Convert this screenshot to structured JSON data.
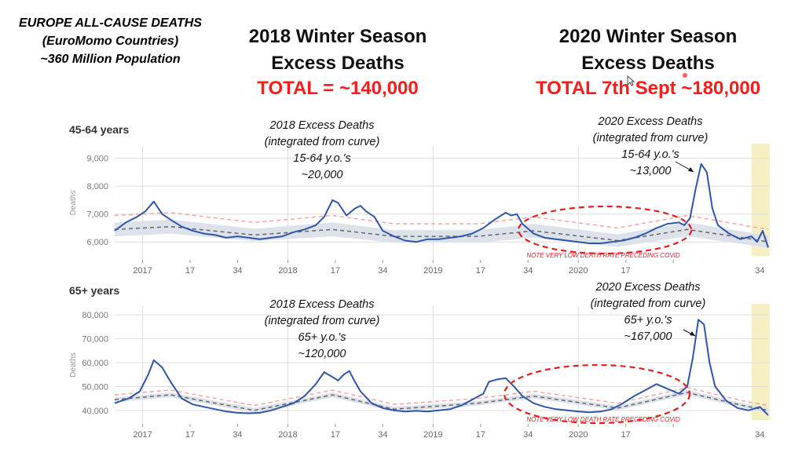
{
  "header": {
    "region_lines": [
      "EUROPE ALL-CAUSE DEATHS",
      "(EuroMomo Countries)",
      "~360 Million Population"
    ],
    "season_2018": {
      "title_lines": [
        "2018 Winter Season",
        "Excess Deaths"
      ],
      "total": "TOTAL = ~140,000"
    },
    "season_2020": {
      "title_lines": [
        "2020 Winter Season",
        "Excess Deaths"
      ],
      "total": "TOTAL 7th Sept ~180,000"
    }
  },
  "colors": {
    "observed": "#2f55a8",
    "baseline": "#666666",
    "upper_threshold": "#f4a3a3",
    "band": "#dde2ea",
    "highlight": "#f7efc4",
    "annotation_red": "#e02020",
    "grid": "#dddddd"
  },
  "panels": [
    {
      "age_label": "45-64 years",
      "y_axis_label": "Deaths",
      "y_ticks": [
        "6,000",
        "7,000",
        "8,000",
        "9,000"
      ],
      "x_ticks": [
        "2017",
        "17",
        "34",
        "2018",
        "17",
        "34",
        "2019",
        "17",
        "34",
        "2020",
        "17",
        "34"
      ],
      "annotation_2018": [
        "2018 Excess Deaths",
        "(integrated from curve)",
        "15-64 y.o.'s",
        "~20,000"
      ],
      "annotation_2020": [
        "2020 Excess Deaths",
        "(integrated from curve)",
        "15-64 y.o.'s",
        "~13,000"
      ],
      "note": "NOTE VERY LOW DEATH RATE PRECEDING COVID"
    },
    {
      "age_label": "65+ years",
      "y_axis_label": "Deaths",
      "y_ticks": [
        "40,000",
        "50,000",
        "60,000",
        "70,000",
        "80,000"
      ],
      "x_ticks": [
        "2017",
        "17",
        "34",
        "2018",
        "17",
        "34",
        "2019",
        "17",
        "34",
        "2020",
        "17",
        "34"
      ],
      "annotation_2018": [
        "2018 Excess Deaths",
        "(integrated from curve)",
        "65+ y.o.'s",
        "~120,000"
      ],
      "annotation_2020": [
        "2020 Excess Deaths",
        "(integrated from curve)",
        "65+ y.o.'s",
        "~167,000"
      ],
      "note": "NOTE VERY LOW DEATH RATE PRECEDING COVID"
    }
  ],
  "chart_data": [
    {
      "type": "line",
      "title": "45-64 years",
      "ylabel": "Deaths",
      "x_unit": "weeks since start of chart (week 1 = start of 2016/17 season)",
      "x_tick_labels": [
        "2017",
        "17",
        "34",
        "2018",
        "17",
        "34",
        "2019",
        "17",
        "34",
        "2020",
        "17",
        "34"
      ],
      "ylim": [
        5500,
        9300
      ],
      "series": [
        {
          "name": "Observed",
          "points": [
            [
              0,
              6400
            ],
            [
              4,
              6700
            ],
            [
              8,
              6900
            ],
            [
              11,
              7100
            ],
            [
              14,
              7450
            ],
            [
              17,
              7000
            ],
            [
              20,
              6800
            ],
            [
              24,
              6550
            ],
            [
              28,
              6400
            ],
            [
              32,
              6300
            ],
            [
              36,
              6250
            ],
            [
              40,
              6150
            ],
            [
              44,
              6200
            ],
            [
              48,
              6150
            ],
            [
              52,
              6100
            ],
            [
              56,
              6150
            ],
            [
              60,
              6200
            ],
            [
              64,
              6350
            ],
            [
              68,
              6450
            ],
            [
              72,
              6600
            ],
            [
              75,
              6900
            ],
            [
              78,
              7500
            ],
            [
              80,
              7400
            ],
            [
              83,
              6950
            ],
            [
              86,
              7200
            ],
            [
              88,
              7300
            ],
            [
              90,
              7100
            ],
            [
              93,
              6900
            ],
            [
              96,
              6400
            ],
            [
              100,
              6200
            ],
            [
              104,
              6050
            ],
            [
              108,
              6000
            ],
            [
              112,
              6100
            ],
            [
              116,
              6100
            ],
            [
              120,
              6150
            ],
            [
              124,
              6200
            ],
            [
              128,
              6300
            ],
            [
              132,
              6500
            ],
            [
              136,
              6800
            ],
            [
              140,
              7050
            ],
            [
              142,
              6950
            ],
            [
              144,
              7000
            ],
            [
              146,
              6650
            ],
            [
              150,
              6300
            ],
            [
              154,
              6150
            ],
            [
              158,
              6100
            ],
            [
              162,
              6050
            ],
            [
              166,
              6000
            ],
            [
              170,
              5950
            ],
            [
              174,
              5950
            ],
            [
              178,
              6000
            ],
            [
              182,
              6050
            ],
            [
              186,
              6150
            ],
            [
              190,
              6300
            ],
            [
              194,
              6500
            ],
            [
              198,
              6650
            ],
            [
              202,
              6700
            ],
            [
              204,
              6600
            ],
            [
              206,
              6850
            ],
            [
              208,
              7900
            ],
            [
              210,
              8800
            ],
            [
              212,
              8500
            ],
            [
              214,
              7200
            ],
            [
              216,
              6600
            ],
            [
              220,
              6300
            ],
            [
              224,
              6100
            ],
            [
              228,
              6200
            ],
            [
              230,
              6000
            ],
            [
              232,
              6400
            ],
            [
              234,
              5800
            ]
          ]
        },
        {
          "name": "Baseline",
          "points": [
            [
              0,
              6450
            ],
            [
              20,
              6550
            ],
            [
              50,
              6250
            ],
            [
              78,
              6450
            ],
            [
              100,
              6200
            ],
            [
              130,
              6200
            ],
            [
              150,
              6400
            ],
            [
              180,
              6050
            ],
            [
              205,
              6450
            ],
            [
              225,
              6150
            ],
            [
              234,
              6000
            ]
          ]
        },
        {
          "name": "Upper threshold",
          "points": [
            [
              0,
              6950
            ],
            [
              20,
              7050
            ],
            [
              50,
              6700
            ],
            [
              78,
              6950
            ],
            [
              100,
              6650
            ],
            [
              130,
              6650
            ],
            [
              150,
              6900
            ],
            [
              180,
              6500
            ],
            [
              205,
              6950
            ],
            [
              225,
              6600
            ],
            [
              234,
              6450
            ]
          ]
        }
      ]
    },
    {
      "type": "line",
      "title": "65+ years",
      "ylabel": "Deaths",
      "x_unit": "weeks since start of chart (week 1 = start of 2016/17 season)",
      "x_tick_labels": [
        "2017",
        "17",
        "34",
        "2018",
        "17",
        "34",
        "2019",
        "17",
        "34",
        "2020",
        "17",
        "34"
      ],
      "ylim": [
        36000,
        82000
      ],
      "series": [
        {
          "name": "Observed",
          "points": [
            [
              0,
              43000
            ],
            [
              5,
              45000
            ],
            [
              9,
              48000
            ],
            [
              12,
              55000
            ],
            [
              14,
              61000
            ],
            [
              17,
              58000
            ],
            [
              20,
              52000
            ],
            [
              24,
              45000
            ],
            [
              28,
              42500
            ],
            [
              32,
              41500
            ],
            [
              36,
              40500
            ],
            [
              40,
              39500
            ],
            [
              44,
              39000
            ],
            [
              48,
              38800
            ],
            [
              52,
              39000
            ],
            [
              56,
              40000
            ],
            [
              60,
              41500
            ],
            [
              64,
              43000
            ],
            [
              68,
              46000
            ],
            [
              72,
              51000
            ],
            [
              75,
              56000
            ],
            [
              78,
              54000
            ],
            [
              80,
              52500
            ],
            [
              82,
              55000
            ],
            [
              84,
              56500
            ],
            [
              86,
              52000
            ],
            [
              88,
              48000
            ],
            [
              92,
              43000
            ],
            [
              96,
              41000
            ],
            [
              100,
              40000
            ],
            [
              104,
              39500
            ],
            [
              108,
              39800
            ],
            [
              112,
              39500
            ],
            [
              116,
              40000
            ],
            [
              120,
              40500
            ],
            [
              124,
              42000
            ],
            [
              128,
              44500
            ],
            [
              132,
              47000
            ],
            [
              134,
              52000
            ],
            [
              137,
              53000
            ],
            [
              140,
              53500
            ],
            [
              143,
              50000
            ],
            [
              146,
              46000
            ],
            [
              150,
              43000
            ],
            [
              154,
              41500
            ],
            [
              158,
              40500
            ],
            [
              162,
              40000
            ],
            [
              166,
              39500
            ],
            [
              170,
              39200
            ],
            [
              174,
              39500
            ],
            [
              178,
              40500
            ],
            [
              182,
              43000
            ],
            [
              186,
              46000
            ],
            [
              190,
              48500
            ],
            [
              194,
              51000
            ],
            [
              198,
              49000
            ],
            [
              202,
              47000
            ],
            [
              205,
              50000
            ],
            [
              207,
              62000
            ],
            [
              209,
              78000
            ],
            [
              211,
              76000
            ],
            [
              213,
              60000
            ],
            [
              215,
              50000
            ],
            [
              219,
              44000
            ],
            [
              223,
              41000
            ],
            [
              227,
              40000
            ],
            [
              231,
              41500
            ],
            [
              234,
              38000
            ]
          ]
        },
        {
          "name": "Baseline",
          "points": [
            [
              0,
              44500
            ],
            [
              20,
              46500
            ],
            [
              50,
              40000
            ],
            [
              78,
              46500
            ],
            [
              100,
              40500
            ],
            [
              130,
              43000
            ],
            [
              150,
              46000
            ],
            [
              180,
              41000
            ],
            [
              205,
              47500
            ],
            [
              225,
              42000
            ],
            [
              234,
              40000
            ]
          ]
        },
        {
          "name": "Upper threshold",
          "points": [
            [
              0,
              46500
            ],
            [
              20,
              48500
            ],
            [
              50,
              42000
            ],
            [
              78,
              48500
            ],
            [
              100,
              42500
            ],
            [
              130,
              45000
            ],
            [
              150,
              48000
            ],
            [
              180,
              43000
            ],
            [
              205,
              49500
            ],
            [
              225,
              44000
            ],
            [
              234,
              42000
            ]
          ]
        }
      ]
    }
  ]
}
